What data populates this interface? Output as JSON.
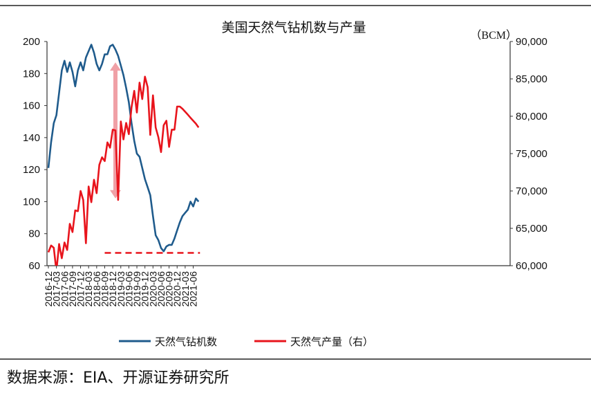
{
  "chart_data": {
    "type": "line",
    "title": "美国天然气钻机数与产量",
    "y2_unit": "（BCM）",
    "ylim": [
      60,
      200
    ],
    "yticks": [
      "200",
      "180",
      "160",
      "140",
      "120",
      "100",
      "80",
      "60"
    ],
    "y2lim": [
      60000,
      90000
    ],
    "y2ticks": [
      "90,000",
      "85,000",
      "80,000",
      "75,000",
      "70,000",
      "65,000",
      "60,000"
    ],
    "x": [
      "2016-12",
      "2017-01",
      "2017-02",
      "2017-03",
      "2017-04",
      "2017-05",
      "2017-06",
      "2017-07",
      "2017-08",
      "2017-09",
      "2017-10",
      "2017-11",
      "2017-12",
      "2018-01",
      "2018-02",
      "2018-03",
      "2018-04",
      "2018-05",
      "2018-06",
      "2018-07",
      "2018-08",
      "2018-09",
      "2018-10",
      "2018-11",
      "2018-12",
      "2019-01",
      "2019-02",
      "2019-03",
      "2019-04",
      "2019-05",
      "2019-06",
      "2019-07",
      "2019-08",
      "2019-09",
      "2019-10",
      "2019-11",
      "2019-12",
      "2020-01",
      "2020-02",
      "2020-03",
      "2020-04",
      "2020-05",
      "2020-06",
      "2020-07",
      "2020-08",
      "2020-09",
      "2020-10",
      "2020-11",
      "2020-12",
      "2021-01",
      "2021-02",
      "2021-03",
      "2021-04",
      "2021-05",
      "2021-06",
      "2021-07",
      "2021-08"
    ],
    "xtick_labels": [
      "2016-12",
      "2017-03",
      "2017-06",
      "2017-09",
      "2017-12",
      "2018-03",
      "2018-06",
      "2018-09",
      "2018-12",
      "2019-03",
      "2019-06",
      "2019-09",
      "2019-12",
      "2020-03",
      "2020-06",
      "2020-09",
      "2020-12",
      "2021-03",
      "2021-06"
    ],
    "series": [
      {
        "name": "天然气钻机数",
        "axis": "left",
        "color": "#1f5b8c",
        "values": [
          121,
          137,
          149,
          154,
          168,
          182,
          188,
          181,
          187,
          181,
          172,
          182,
          187,
          182,
          190,
          194,
          198,
          193,
          186,
          182,
          186,
          192,
          192,
          197,
          198,
          195,
          191,
          185,
          179,
          171,
          162,
          149,
          138,
          130,
          128,
          121,
          114,
          109,
          104,
          91,
          79,
          76,
          71,
          69,
          72,
          73,
          73,
          77,
          82,
          87,
          91,
          93,
          95,
          100,
          97,
          102,
          100
        ]
      },
      {
        "name": "天然气产量（右）",
        "axis": "right",
        "color": "#e8141c",
        "values": [
          61800,
          62700,
          62400,
          59300,
          62900,
          61000,
          63100,
          62100,
          65600,
          64500,
          67400,
          67300,
          70000,
          68800,
          63000,
          70600,
          68500,
          71500,
          69700,
          73500,
          74500,
          74000,
          76500,
          75800,
          78200,
          78100,
          68800,
          79300,
          76900,
          79100,
          77600,
          81200,
          83400,
          80500,
          84500,
          82300,
          85300,
          83900,
          77500,
          82800,
          78500,
          77200,
          75200,
          78800,
          79400,
          75900,
          78200,
          78200,
          81300,
          81300,
          81000,
          80600,
          80200,
          79800,
          79400,
          79000,
          78500
        ],
        "extra": "last value positioned at 2021-07 (ends ~2021-07)"
      }
    ],
    "annotations": {
      "reference_line": {
        "axis": "left",
        "value": 68,
        "x_start": "2018-09",
        "x_end": "2021-08",
        "style": "dashed",
        "color": "#e8141c"
      },
      "double_arrow": {
        "axis": "left",
        "x": "2019-01",
        "from": 102,
        "to": 187,
        "color": "#f0a0a6"
      }
    },
    "legend": {
      "placement": "bottom",
      "entries": [
        "天然气钻机数",
        "天然气产量（右）"
      ]
    },
    "grid": false
  },
  "footer": {
    "source": "数据来源：EIA、开源证券研究所"
  }
}
